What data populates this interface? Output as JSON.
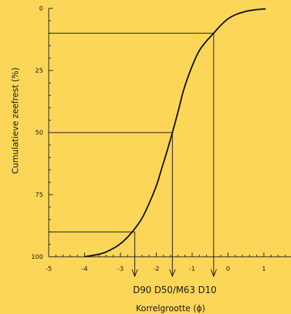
{
  "chart_data": {
    "type": "line",
    "title": "",
    "xlabel": "Korrelgrootte (ϕ)",
    "ylabel": "Cumulatieve zeefrest (%)",
    "xlim": [
      -5,
      1.8
    ],
    "ylim": [
      0,
      100
    ],
    "y_inverted": true,
    "x_ticks": [
      -5,
      -4,
      -3,
      -2,
      -1,
      0,
      1
    ],
    "x_tick_labels": [
      "-5",
      "-4",
      "-3",
      "-2",
      "-1",
      "0",
      "1"
    ],
    "y_ticks": [
      0,
      25,
      50,
      75,
      100
    ],
    "y_tick_labels": [
      "0",
      "25",
      "50",
      "75",
      "100"
    ],
    "grid": false,
    "series": [
      {
        "x": [
          -4.0,
          -3.5,
          -3.15,
          -2.9,
          -2.65,
          -2.4,
          -2.2,
          -2.0,
          -1.85,
          -1.7,
          -1.55,
          -1.4,
          -1.25,
          -1.1,
          -0.95,
          -0.8,
          -0.62,
          -0.4,
          -0.2,
          0.0,
          0.2,
          0.5,
          0.8,
          1.05
        ],
        "y": [
          100,
          98.6,
          96.2,
          93.5,
          89.6,
          84.5,
          78.5,
          71.5,
          64.5,
          57.5,
          50.0,
          42.0,
          33.5,
          27.0,
          21.5,
          17.0,
          13.5,
          10.0,
          6.8,
          4.2,
          2.6,
          1.2,
          0.5,
          0.2
        ]
      }
    ],
    "reference_points": [
      {
        "label": "D10",
        "x": -0.4,
        "y": 10
      },
      {
        "label": "D50/M63",
        "x": -1.55,
        "y": 50
      },
      {
        "label": "D90",
        "x": -2.6,
        "y": 90
      }
    ],
    "annotation": "D90 D50/M63 D10"
  }
}
